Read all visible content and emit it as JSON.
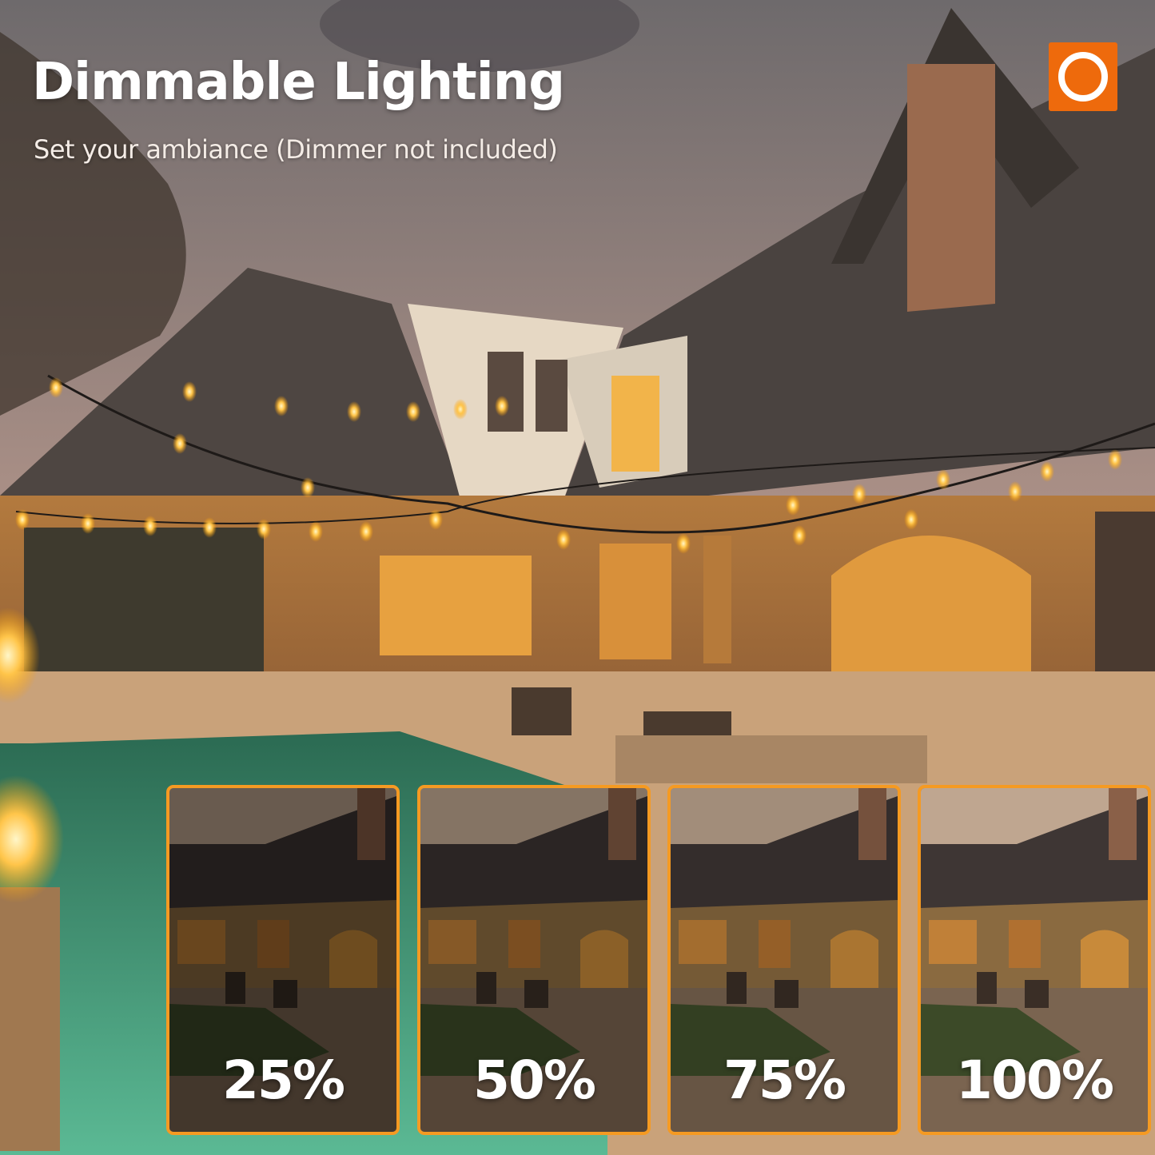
{
  "header": {
    "title": "Dimmable Lighting",
    "subtitle": "Set your ambiance (Dimmer not included)"
  },
  "brand": {
    "logo_icon": "ring-logo-icon",
    "logo_color": "#ee6a0c"
  },
  "accent_color": "#f59a22",
  "brightness_levels": [
    {
      "label": "25%",
      "level": 25
    },
    {
      "label": "50%",
      "level": 50
    },
    {
      "label": "75%",
      "level": 75
    },
    {
      "label": "100%",
      "level": 100
    }
  ]
}
